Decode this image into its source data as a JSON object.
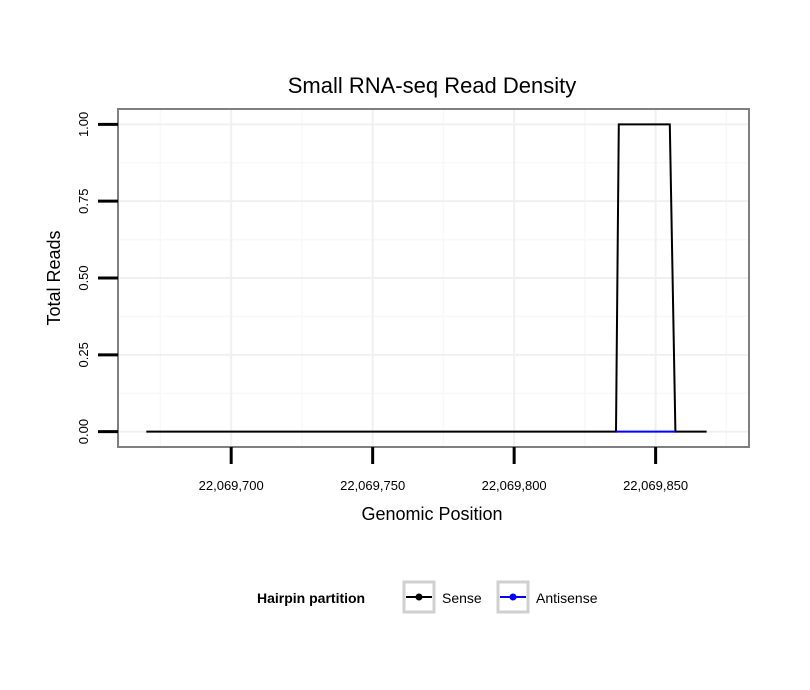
{
  "chart_data": {
    "type": "line",
    "title": "Small RNA-seq Read Density",
    "xlabel": "Genomic Position",
    "ylabel": "Total Reads",
    "xlim": [
      22069660,
      22069883
    ],
    "ylim": [
      -0.05,
      1.05
    ],
    "x_ticks": [
      22069700,
      22069750,
      22069800,
      22069850
    ],
    "x_tick_labels": [
      "22,069,700",
      "22,069,750",
      "22,069,800",
      "22,069,850"
    ],
    "y_ticks": [
      0,
      0.25,
      0.5,
      0.75,
      1.0
    ],
    "y_tick_labels": [
      "0.00",
      "0.25",
      "0.50",
      "0.75",
      "1.00"
    ],
    "grid": true,
    "legend": {
      "title": "Hairpin partition",
      "position": "bottom",
      "entries": [
        {
          "label": "Sense",
          "color": "#000000"
        },
        {
          "label": "Antisense",
          "color": "#0000ff"
        }
      ]
    },
    "series": [
      {
        "name": "Sense",
        "color": "#000000",
        "x": [
          22069670,
          22069836,
          22069837,
          22069855,
          22069857,
          22069868
        ],
        "y": [
          0,
          0,
          1,
          1,
          0,
          0
        ]
      },
      {
        "name": "Antisense",
        "color": "#0000ff",
        "x": [
          22069836,
          22069857
        ],
        "y": [
          0,
          0
        ]
      }
    ]
  }
}
